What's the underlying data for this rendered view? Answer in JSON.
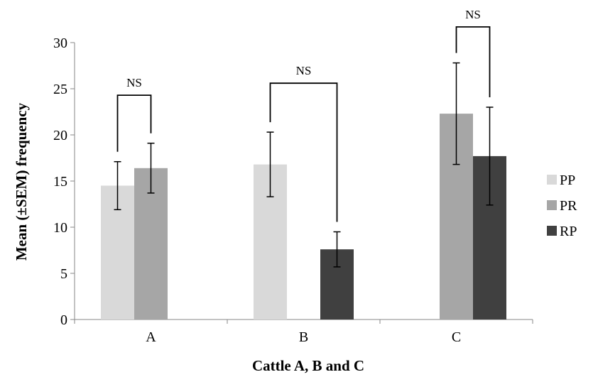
{
  "chart_data": {
    "type": "bar",
    "title": "",
    "xlabel": "Cattle A, B and C",
    "ylabel": "Mean (±SEM) frequency",
    "categories": [
      "A",
      "B",
      "C"
    ],
    "ylim": [
      0,
      30
    ],
    "yticks": [
      0,
      5,
      10,
      15,
      20,
      25,
      30
    ],
    "grid": false,
    "legend_position": "right",
    "series": [
      {
        "name": "PP",
        "color": "#d9d9d9",
        "values": [
          14.5,
          16.8,
          null
        ],
        "errors": [
          2.6,
          3.5,
          null
        ]
      },
      {
        "name": "PR",
        "color": "#a6a6a6",
        "values": [
          16.4,
          null,
          22.3
        ],
        "errors": [
          2.7,
          null,
          5.5
        ]
      },
      {
        "name": "RP",
        "color": "#404040",
        "values": [
          null,
          7.6,
          17.7
        ],
        "errors": [
          null,
          1.9,
          5.3
        ]
      }
    ],
    "annotations": [
      {
        "category": "A",
        "from_series": "PP",
        "to_series": "PR",
        "label": "NS",
        "level": 24.3
      },
      {
        "category": "B",
        "from_series": "PP",
        "to_series": "RP",
        "label": "NS",
        "level": 25.6
      },
      {
        "category": "C",
        "from_series": "PR",
        "to_series": "RP",
        "label": "NS",
        "level": 31.7
      }
    ]
  }
}
